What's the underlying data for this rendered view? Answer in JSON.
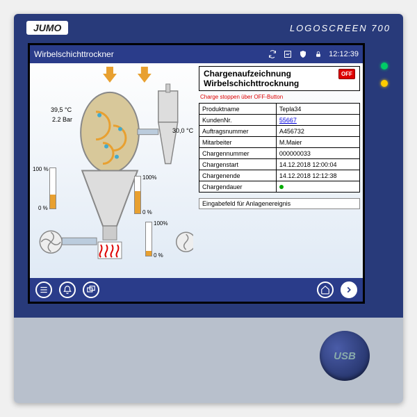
{
  "brand": "JUMO",
  "model": "LOGOSCREEN 700",
  "titlebar": {
    "title": "Wirbelschichttrockner",
    "time": "12:12:39"
  },
  "process": {
    "temp_left": "39,5 °C",
    "pressure_left": "2.2 Bar",
    "temp_right": "30,0 °C",
    "gauges": {
      "left": {
        "top_label": "100 %",
        "bottom_label": "0 %",
        "fill_pct": 35
      },
      "mid": {
        "top_label": "100%",
        "bottom_label": "0 %",
        "fill_pct": 60
      },
      "right": {
        "top_label": "100%",
        "bottom_label": "0 %",
        "fill_pct": 15
      }
    }
  },
  "batch": {
    "header_line1": "Chargenaufzeichnung",
    "header_line2": "Wirbelschichttrocknung",
    "off_label": "OFF",
    "warning": "Charge stoppen über OFF-Button",
    "rows": [
      {
        "k": "Produktname",
        "v": "Tepla34"
      },
      {
        "k": "KundenNr.",
        "v": "55667",
        "link": true
      },
      {
        "k": "Auftragsnummer",
        "v": "A456732"
      },
      {
        "k": "Mitarbeiter",
        "v": "M.Maier"
      },
      {
        "k": "Chargennummer",
        "v": "000000033"
      },
      {
        "k": "Chargenstart",
        "v": "14.12.2018 12:00:04"
      },
      {
        "k": "Chargenende",
        "v": "14.12.2018 12:12:38"
      },
      {
        "k": "Chargendauer",
        "v": "",
        "dot": true
      }
    ],
    "input_label": "Eingabefeld für Anlagenereignis"
  },
  "usb_label": "USB",
  "colors": {
    "bezel": "#283a7a",
    "bar_fill": "#e8a030",
    "accent_blue": "#2a3c8a"
  }
}
